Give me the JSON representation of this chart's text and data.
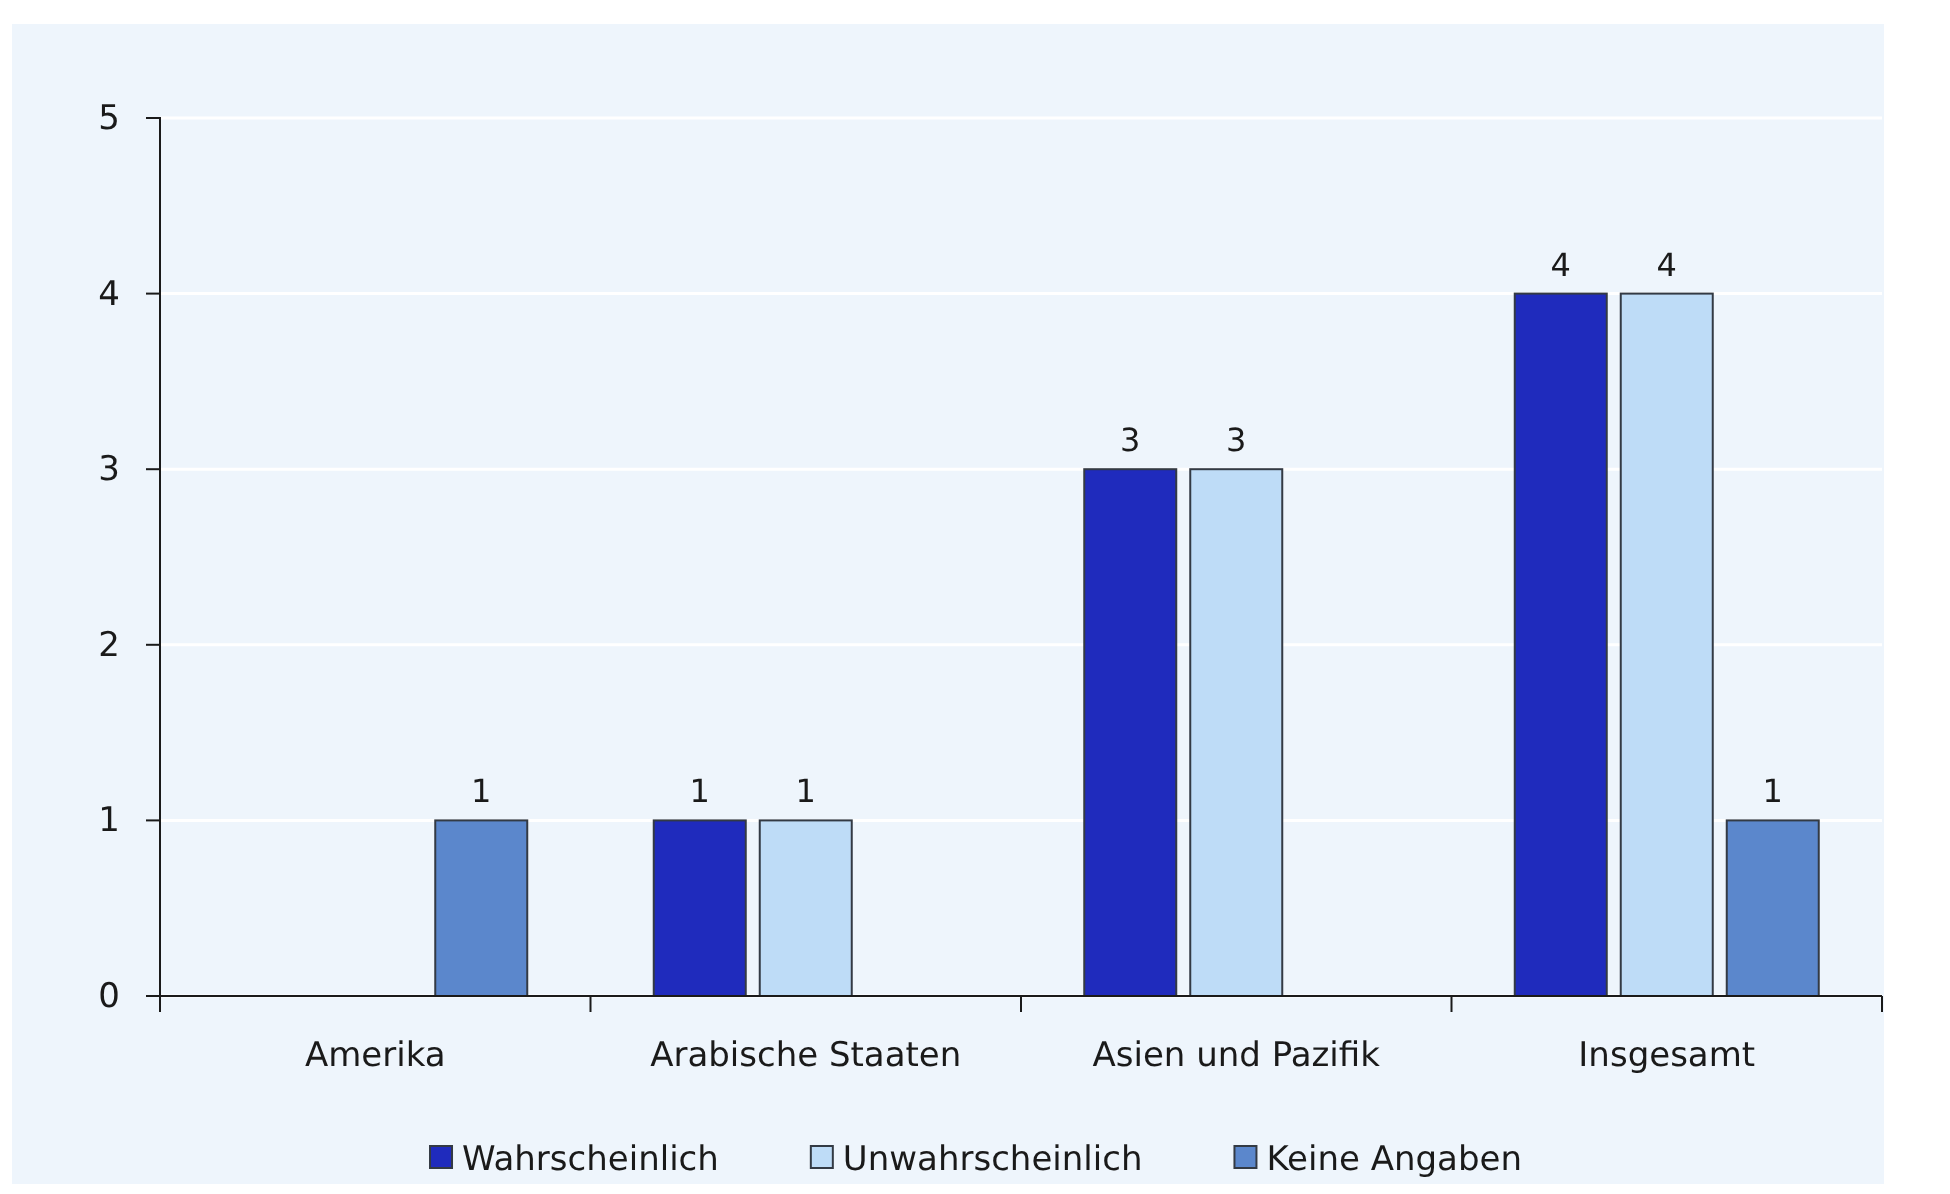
{
  "chart_data": {
    "type": "bar",
    "categories": [
      "Amerika",
      "Arabische Staaten",
      "Asien und Pazifik",
      "Insgesamt"
    ],
    "series": [
      {
        "name": "Wahrscheinlich",
        "color": "#1f2bbd",
        "values": [
          null,
          1,
          3,
          4
        ]
      },
      {
        "name": "Unwahrscheinlich",
        "color": "#bedcf7",
        "values": [
          null,
          1,
          3,
          4
        ]
      },
      {
        "name": "Keine Angaben",
        "color": "#5b87cc",
        "values": [
          1,
          null,
          null,
          1
        ]
      }
    ],
    "ylim": [
      0,
      5
    ],
    "yticks": [
      0,
      1,
      2,
      3,
      4,
      5
    ],
    "grid": "y",
    "legend": "bottom",
    "data_labels": true
  }
}
